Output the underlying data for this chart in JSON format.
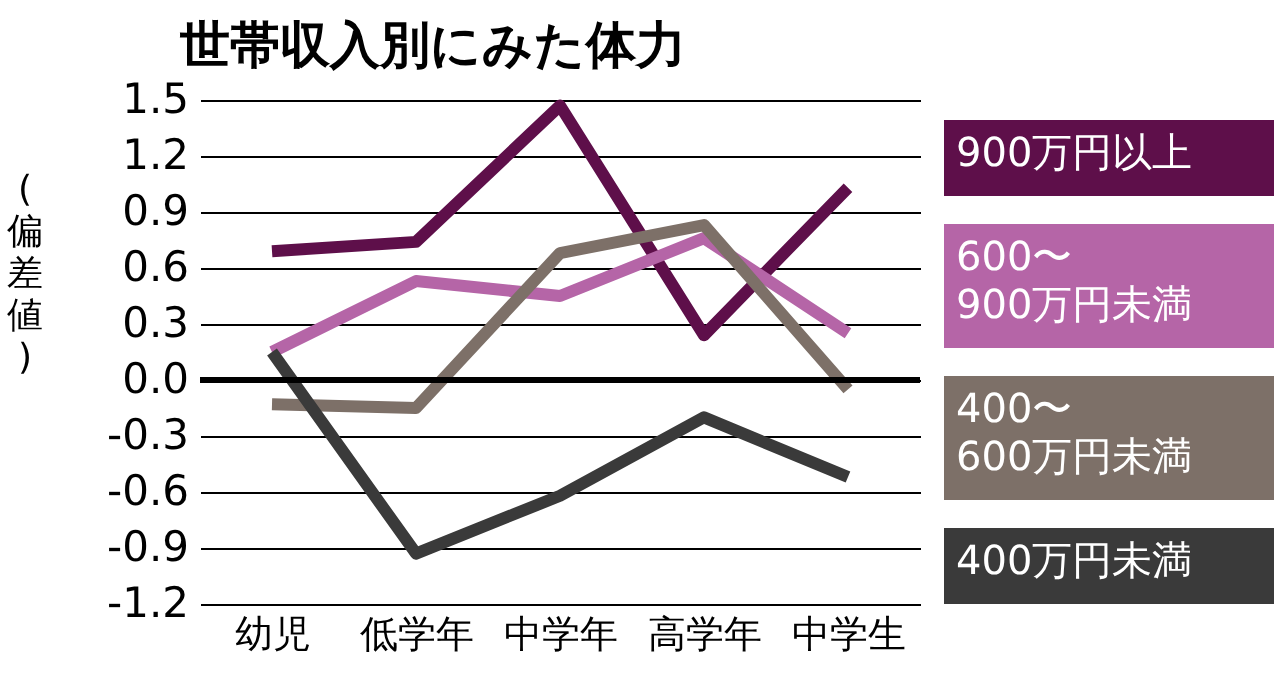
{
  "chart_data": {
    "type": "line",
    "title": "世帯収入別にみた体力",
    "ylabel": "(偏差値)",
    "categories": [
      "幼児",
      "低学年",
      "中学年",
      "高学年",
      "中学生"
    ],
    "ylim": [
      -1.2,
      1.5
    ],
    "yticks": [
      {
        "value": -1.2,
        "label": "-1.2"
      },
      {
        "value": -0.9,
        "label": "-0.9"
      },
      {
        "value": -0.6,
        "label": "-0.6"
      },
      {
        "value": -0.3,
        "label": "-0.3"
      },
      {
        "value": 0,
        "label": "0.0"
      },
      {
        "value": 0.3,
        "label": "0.3"
      },
      {
        "value": 0.6,
        "label": "0.6"
      },
      {
        "value": 0.9,
        "label": "0.9"
      },
      {
        "value": 1.2,
        "label": "1.2"
      },
      {
        "value": 1.5,
        "label": "1.5"
      }
    ],
    "grid": "y",
    "legend": "right",
    "marker": "none",
    "line_style": "solid",
    "series": [
      {
        "name": "900万円以上",
        "color": "#5e0f4a",
        "values": [
          0.69,
          0.74,
          1.47,
          0.24,
          1.03
        ]
      },
      {
        "name": "600〜\n900万円未満",
        "color": "#b565a7",
        "values": [
          0.15,
          0.53,
          0.45,
          0.76,
          0.25
        ]
      },
      {
        "name": "400〜\n600万円未満",
        "color": "#7d7068",
        "values": [
          -0.13,
          -0.15,
          0.68,
          0.83,
          -0.05
        ]
      },
      {
        "name": "400万円未満",
        "color": "#3a3a3a",
        "values": [
          0.15,
          -0.93,
          -0.62,
          -0.2,
          -0.52
        ]
      }
    ]
  }
}
